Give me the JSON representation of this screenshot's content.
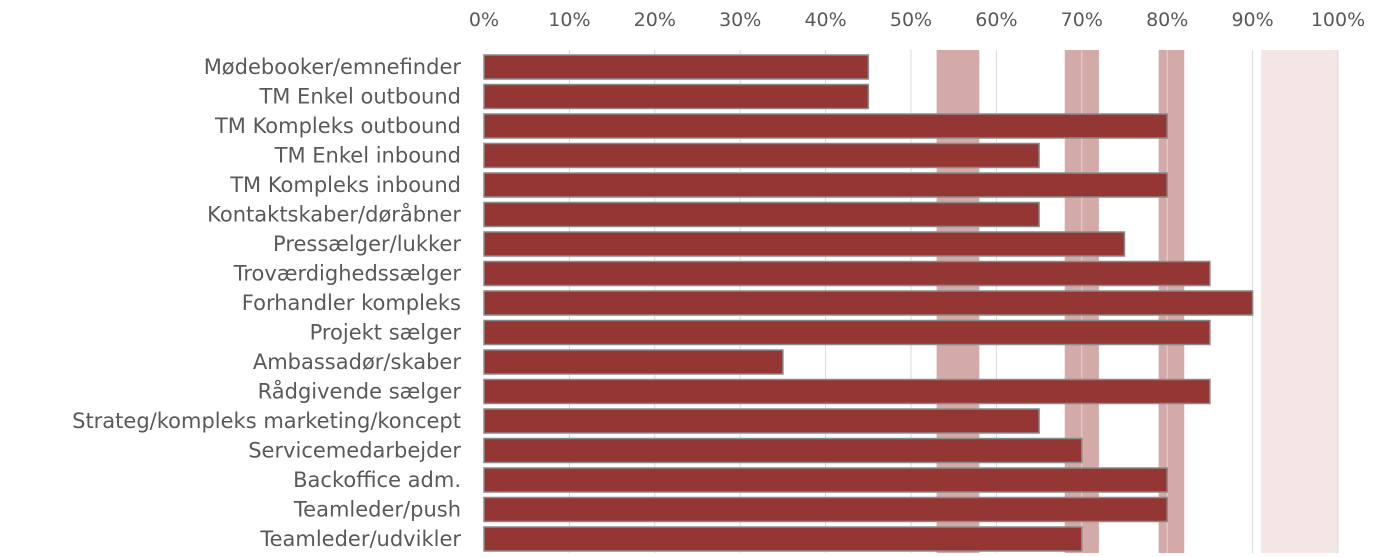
{
  "chart_data": {
    "type": "bar",
    "orientation": "horizontal",
    "x_ticks": [
      "0%",
      "10%",
      "20%",
      "30%",
      "40%",
      "50%",
      "60%",
      "70%",
      "80%",
      "90%",
      "100%"
    ],
    "xlim": [
      0,
      100
    ],
    "x_axis_position": "top",
    "grid": true,
    "categories": [
      "Mødebooker/emnefinder",
      "TM Enkel outbound",
      "TM Kompleks outbound",
      "TM Enkel inbound",
      "TM Kompleks inbound",
      "Kontaktskaber/døråbner",
      "Pressælger/lukker",
      "Troværdighedssælger",
      "Forhandler kompleks",
      "Projekt sælger",
      "Ambassadør/skaber",
      "Rådgivende sælger",
      "Strateg/kompleks marketing/koncept",
      "Servicemedarbejder",
      "Backoffice adm.",
      "Teamleder/push",
      "Teamleder/udvikler"
    ],
    "values": [
      45,
      45,
      80,
      65,
      80,
      65,
      75,
      85,
      90,
      85,
      35,
      85,
      65,
      70,
      80,
      80,
      70
    ],
    "bands": [
      {
        "from": 53,
        "to": 58,
        "color": "#d4aaa9"
      },
      {
        "from": 68,
        "to": 72,
        "color": "#d4aaa9"
      },
      {
        "from": 79,
        "to": 82,
        "color": "#d4aaa9"
      },
      {
        "from": 91,
        "to": 100,
        "color": "#f5e6e6"
      }
    ],
    "bar_color": "#933634",
    "bar_border_color": "#8a8a8a",
    "grid_color": "#d9d9d9",
    "text_color": "#595959"
  }
}
